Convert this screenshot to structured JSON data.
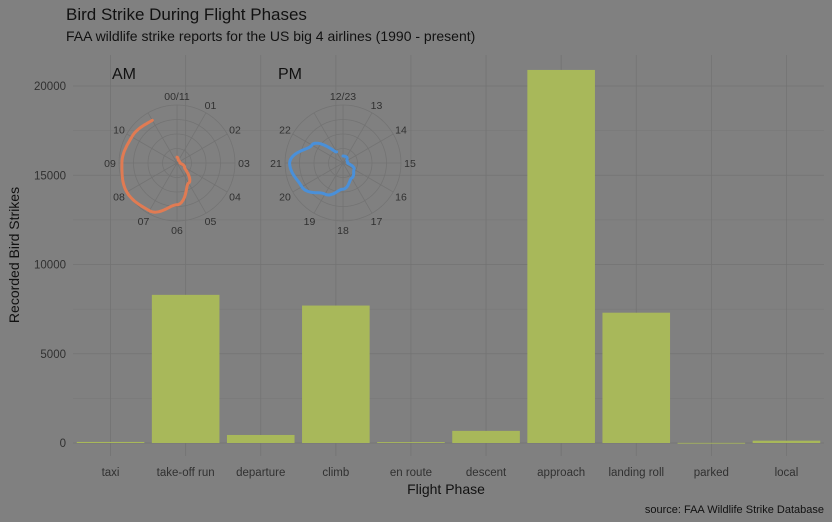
{
  "title": "Bird Strike During Flight Phases",
  "subtitle": "FAA wildlife strike reports for the US big 4 airlines (1990 - present)",
  "caption": "source: FAA Wildlife Strike Database",
  "colors": {
    "background": "#808080",
    "bar": "#A8B85A",
    "grid": "#737373",
    "text": "#1a1a1a",
    "tick_text": "#303030",
    "am_line": "#E07B53",
    "pm_line": "#4A90D9"
  },
  "chart_data": [
    {
      "type": "bar",
      "xlabel": "Flight Phase",
      "ylabel": "Recorded Bird Strikes",
      "categories": [
        "taxi",
        "take-off run",
        "departure",
        "climb",
        "en route",
        "descent",
        "approach",
        "landing roll",
        "parked",
        "local"
      ],
      "values": [
        60,
        8300,
        450,
        7700,
        50,
        680,
        20900,
        7300,
        10,
        130
      ],
      "ylim": [
        0,
        22000
      ],
      "yticks": [
        0,
        5000,
        10000,
        15000,
        20000
      ],
      "grid": true
    },
    {
      "type": "line",
      "polar": true,
      "title": "AM",
      "theta_labels": [
        "00/11",
        "01",
        "02",
        "03",
        "04",
        "05",
        "06",
        "07",
        "08",
        "09",
        "10"
      ],
      "hours": [
        0,
        1,
        2,
        3,
        4,
        5,
        6,
        7,
        8,
        9,
        10,
        11
      ],
      "values": [
        0.1,
        0.05,
        0.05,
        0.05,
        0.15,
        0.4,
        0.72,
        0.95,
        1.0,
        0.95,
        0.9,
        0.85
      ],
      "legend": false
    },
    {
      "type": "line",
      "polar": true,
      "title": "PM",
      "theta_labels": [
        "12/23",
        "13",
        "14",
        "15",
        "16",
        "17",
        "18",
        "19",
        "20",
        "21",
        "22"
      ],
      "hours": [
        12,
        13,
        14,
        15,
        16,
        17,
        18,
        19,
        20,
        21,
        22,
        23
      ],
      "values": [
        0.12,
        0.12,
        0.08,
        0.08,
        0.22,
        0.3,
        0.45,
        0.62,
        0.82,
        0.92,
        0.62,
        0.22
      ],
      "legend": false
    }
  ]
}
